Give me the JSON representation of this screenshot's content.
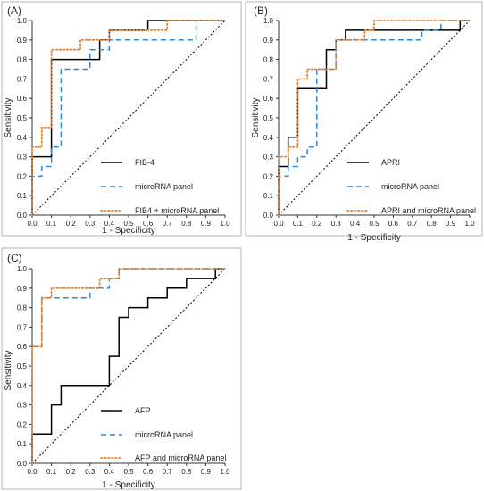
{
  "figure": {
    "background": "#ffffff",
    "axis_color": "#333333"
  },
  "chart_data": [
    {
      "panel_label": "(A)",
      "type": "line",
      "xlabel": "1 - Specificity",
      "ylabel": "Sensitivity",
      "xlim": [
        0,
        1
      ],
      "ylim": [
        0,
        1
      ],
      "xticks": [
        "0.0",
        "0.1",
        "0.2",
        "0.3",
        "0.4",
        "0.5",
        "0.6",
        "0.7",
        "0.8",
        "0.9",
        "1.0"
      ],
      "yticks": [
        "0.0",
        "0.1",
        "0.2",
        "0.3",
        "0.4",
        "0.5",
        "0.6",
        "0.7",
        "0.8",
        "0.9",
        "1.0"
      ],
      "grid": false,
      "legend_position": "bottom-right",
      "reference_line": {
        "x": [
          0,
          1
        ],
        "y": [
          0,
          1
        ],
        "color": "#000000",
        "style": "dotted"
      },
      "series": [
        {
          "name": "FIB-4",
          "color": "#000000",
          "style": "solid",
          "x": [
            0,
            0,
            0.1,
            0.1,
            0.35,
            0.35,
            0.4,
            0.4,
            0.6,
            0.6,
            1
          ],
          "y": [
            0,
            0.3,
            0.3,
            0.8,
            0.8,
            0.9,
            0.9,
            0.95,
            0.95,
            1,
            1
          ]
        },
        {
          "name": "microRNA panel",
          "color": "#2e8bd8",
          "style": "dashed",
          "x": [
            0,
            0,
            0.05,
            0.05,
            0.1,
            0.1,
            0.15,
            0.15,
            0.3,
            0.3,
            0.4,
            0.4,
            0.85,
            0.85,
            1
          ],
          "y": [
            0,
            0.2,
            0.2,
            0.25,
            0.25,
            0.35,
            0.35,
            0.75,
            0.75,
            0.85,
            0.85,
            0.9,
            0.9,
            1,
            1
          ]
        },
        {
          "name": "FIB4 + microRNA panel",
          "color": "#e8822e",
          "style": "dotted",
          "x": [
            0,
            0,
            0.05,
            0.05,
            0.1,
            0.1,
            0.25,
            0.25,
            0.4,
            0.4,
            0.7,
            0.7,
            1
          ],
          "y": [
            0,
            0.35,
            0.35,
            0.45,
            0.45,
            0.85,
            0.85,
            0.9,
            0.9,
            0.95,
            0.95,
            1,
            1
          ]
        }
      ]
    },
    {
      "panel_label": "(B)",
      "type": "line",
      "xlabel": "1 - Specificity",
      "ylabel": "Sensitivity",
      "xlim": [
        0,
        1
      ],
      "ylim": [
        0,
        1
      ],
      "xticks": [
        "0.0",
        "0.1",
        "0.2",
        "0.3",
        "0.4",
        "0.5",
        "0.6",
        "0.7",
        "0.8",
        "0.9",
        "1.0"
      ],
      "yticks": [
        "0.0",
        "0.1",
        "0.2",
        "0.3",
        "0.4",
        "0.5",
        "0.6",
        "0.7",
        "0.8",
        "0.9",
        "1.0"
      ],
      "grid": false,
      "legend_position": "bottom-right",
      "reference_line": {
        "x": [
          0,
          1
        ],
        "y": [
          0,
          1
        ],
        "color": "#000000",
        "style": "dotted"
      },
      "series": [
        {
          "name": "APRI",
          "color": "#000000",
          "style": "solid",
          "x": [
            0,
            0,
            0.05,
            0.05,
            0.1,
            0.1,
            0.25,
            0.25,
            0.3,
            0.3,
            0.35,
            0.35,
            0.95,
            0.95,
            1
          ],
          "y": [
            0,
            0.25,
            0.25,
            0.4,
            0.4,
            0.65,
            0.65,
            0.85,
            0.85,
            0.9,
            0.9,
            0.95,
            0.95,
            1,
            1
          ]
        },
        {
          "name": "microRNA panel",
          "color": "#2e8bd8",
          "style": "dashed",
          "x": [
            0,
            0,
            0.05,
            0.05,
            0.1,
            0.1,
            0.15,
            0.15,
            0.2,
            0.2,
            0.3,
            0.3,
            0.75,
            0.75,
            0.85,
            0.85,
            1
          ],
          "y": [
            0,
            0.2,
            0.2,
            0.25,
            0.25,
            0.3,
            0.3,
            0.35,
            0.35,
            0.75,
            0.75,
            0.9,
            0.9,
            0.95,
            0.95,
            1,
            1
          ]
        },
        {
          "name": "APRI and microRNA panel",
          "color": "#e8822e",
          "style": "dotted",
          "x": [
            0,
            0,
            0.05,
            0.05,
            0.1,
            0.1,
            0.15,
            0.15,
            0.3,
            0.3,
            0.45,
            0.45,
            0.5,
            0.5,
            1
          ],
          "y": [
            0,
            0.3,
            0.3,
            0.35,
            0.35,
            0.7,
            0.7,
            0.75,
            0.75,
            0.9,
            0.9,
            0.95,
            0.95,
            1,
            1
          ]
        }
      ]
    },
    {
      "panel_label": "(C)",
      "type": "line",
      "xlabel": "1 - Specificity",
      "ylabel": "Sensitivity",
      "xlim": [
        0,
        1
      ],
      "ylim": [
        0,
        1
      ],
      "xticks": [
        "0.0",
        "0.1",
        "0.2",
        "0.3",
        "0.4",
        "0.5",
        "0.6",
        "0.7",
        "0.8",
        "0.9",
        "1.0"
      ],
      "yticks": [
        "0.0",
        "0.1",
        "0.2",
        "0.3",
        "0.4",
        "0.5",
        "0.6",
        "0.7",
        "0.8",
        "0.9",
        "1.0"
      ],
      "grid": false,
      "legend_position": "bottom-right",
      "reference_line": {
        "x": [
          0,
          1
        ],
        "y": [
          0,
          1
        ],
        "color": "#000000",
        "style": "dotted"
      },
      "series": [
        {
          "name": "AFP",
          "color": "#000000",
          "style": "solid",
          "x": [
            0,
            0,
            0.1,
            0.1,
            0.15,
            0.15,
            0.4,
            0.4,
            0.45,
            0.45,
            0.5,
            0.5,
            0.6,
            0.6,
            0.7,
            0.7,
            0.8,
            0.8,
            0.95,
            0.95,
            1
          ],
          "y": [
            0,
            0.15,
            0.15,
            0.3,
            0.3,
            0.4,
            0.4,
            0.55,
            0.55,
            0.75,
            0.75,
            0.8,
            0.8,
            0.85,
            0.85,
            0.9,
            0.9,
            0.95,
            0.95,
            1,
            1
          ]
        },
        {
          "name": "microRNA panel",
          "color": "#2e8bd8",
          "style": "dashed",
          "x": [
            0,
            0,
            0.05,
            0.05,
            0.3,
            0.3,
            0.4,
            0.4,
            0.45,
            0.45,
            1
          ],
          "y": [
            0,
            0.6,
            0.6,
            0.85,
            0.85,
            0.9,
            0.9,
            0.95,
            0.95,
            1,
            1
          ]
        },
        {
          "name": "AFP and microRNA panel",
          "color": "#e8822e",
          "style": "dotted",
          "x": [
            0,
            0,
            0.05,
            0.05,
            0.1,
            0.1,
            0.35,
            0.35,
            0.45,
            0.45,
            1
          ],
          "y": [
            0,
            0.6,
            0.6,
            0.85,
            0.85,
            0.9,
            0.9,
            0.95,
            0.95,
            1,
            1
          ]
        }
      ]
    }
  ]
}
